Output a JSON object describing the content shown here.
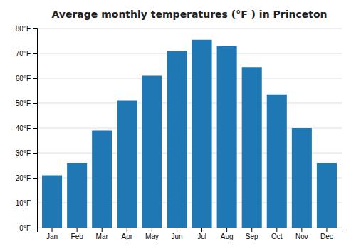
{
  "chart_data": {
    "type": "bar",
    "title": "Average monthly temperatures (°F ) in Princeton",
    "categories": [
      "Jan",
      "Feb",
      "Mar",
      "Apr",
      "May",
      "Jun",
      "Jul",
      "Aug",
      "Sep",
      "Oct",
      "Nov",
      "Dec"
    ],
    "values": [
      21,
      26,
      39,
      51,
      61,
      71,
      75.5,
      73,
      64.5,
      53.5,
      40,
      26
    ],
    "ylim": [
      0,
      80
    ],
    "yticks": [
      {
        "value": 0,
        "label": "0°F"
      },
      {
        "value": 10,
        "label": "10°F"
      },
      {
        "value": 20,
        "label": "20°F"
      },
      {
        "value": 30,
        "label": "30°F"
      },
      {
        "value": 40,
        "label": "40°F"
      },
      {
        "value": 50,
        "label": "50°F"
      },
      {
        "value": 60,
        "label": "60°F"
      },
      {
        "value": 70,
        "label": "70°F"
      },
      {
        "value": 80,
        "label": "80°F"
      }
    ],
    "grid": true
  }
}
